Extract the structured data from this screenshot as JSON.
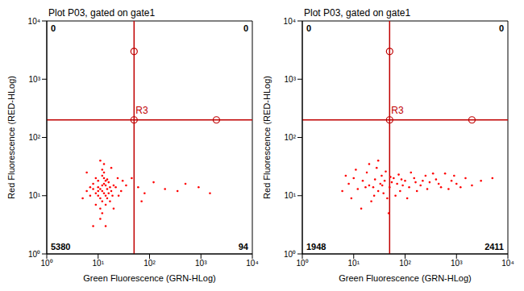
{
  "chart_data": [
    {
      "type": "scatter",
      "title": "Plot P03, gated on gate1",
      "x_label": "Green Fluorescence (GRN-HLog)",
      "y_label": "Red Fluorescence (RED-HLog)",
      "log": true,
      "color": "#ff0000",
      "xlim": [
        1,
        10000
      ],
      "ylim": [
        1,
        10000
      ],
      "xticks": [
        {
          "value": 1,
          "label": "10⁰"
        },
        {
          "value": 10,
          "label": "10¹"
        },
        {
          "value": 100,
          "label": "10²"
        },
        {
          "value": 1000,
          "label": "10³"
        },
        {
          "value": 10000,
          "label": "10⁴"
        }
      ],
      "yticks": [
        {
          "value": 1,
          "label": "10⁰"
        },
        {
          "value": 10,
          "label": "10¹"
        },
        {
          "value": 100,
          "label": "10²"
        },
        {
          "value": 1000,
          "label": "10³"
        },
        {
          "value": 10000,
          "label": "10⁴"
        }
      ],
      "gate": {
        "label": "R3",
        "x": 50,
        "y": 200,
        "handles": [
          [
            50,
            3000
          ],
          [
            50,
            200
          ],
          [
            2000,
            200
          ]
        ],
        "color": "#c00000"
      },
      "quadrant_counts": {
        "upper_left": 0,
        "upper_right": 0,
        "lower_left": 5380,
        "lower_right": 94
      },
      "x": [
        12,
        10,
        14,
        11,
        13,
        9,
        15,
        12,
        16,
        10,
        8,
        13,
        11,
        14,
        17,
        7,
        12,
        15,
        9,
        18,
        11,
        13,
        10,
        14,
        12,
        16,
        8,
        19,
        6,
        12,
        11,
        20,
        14,
        9,
        13,
        17,
        10,
        15,
        12,
        7,
        22,
        25,
        30,
        5,
        24,
        6,
        13,
        11,
        18,
        28,
        35,
        8,
        14,
        20,
        60,
        80,
        120,
        200,
        350,
        500,
        900,
        1500,
        45,
        70
      ],
      "values": [
        12,
        14,
        10,
        9,
        16,
        11,
        13,
        8,
        11,
        18,
        13,
        20,
        6,
        15,
        14,
        10,
        22,
        9,
        7,
        12,
        13,
        11,
        10,
        18,
        5,
        17,
        16,
        10,
        12,
        28,
        4,
        15,
        7,
        20,
        25,
        8,
        12,
        19,
        15,
        14,
        14,
        10,
        18,
        9,
        20,
        25,
        35,
        40,
        30,
        12,
        15,
        3,
        3,
        6,
        14,
        11,
        17,
        13,
        12,
        16,
        14,
        11,
        20,
        8
      ]
    },
    {
      "type": "scatter",
      "title": "Plot P03, gated on gate1",
      "x_label": "Green Fluorescence (GRN-HLog)",
      "y_label": "Red Fluorescence (RED-HLog)",
      "log": true,
      "color": "#ff0000",
      "xlim": [
        1,
        10000
      ],
      "ylim": [
        1,
        10000
      ],
      "xticks": [
        {
          "value": 1,
          "label": "10⁰"
        },
        {
          "value": 10,
          "label": "10¹"
        },
        {
          "value": 100,
          "label": "10²"
        },
        {
          "value": 1000,
          "label": "10³"
        },
        {
          "value": 10000,
          "label": "10⁴"
        }
      ],
      "yticks": [
        {
          "value": 1,
          "label": "10⁰"
        },
        {
          "value": 10,
          "label": "10¹"
        },
        {
          "value": 100,
          "label": "10²"
        },
        {
          "value": 1000,
          "label": "10³"
        },
        {
          "value": 10000,
          "label": "10⁴"
        }
      ],
      "gate": {
        "label": "R3",
        "x": 50,
        "y": 200,
        "handles": [
          [
            50,
            3000
          ],
          [
            50,
            200
          ],
          [
            2000,
            200
          ]
        ],
        "color": "#c00000"
      },
      "quadrant_counts": {
        "upper_left": 0,
        "upper_right": 0,
        "lower_left": 1948,
        "lower_right": 2411
      },
      "x": [
        20,
        30,
        40,
        50,
        60,
        25,
        35,
        45,
        70,
        80,
        100,
        120,
        150,
        200,
        250,
        300,
        400,
        500,
        600,
        800,
        1000,
        1500,
        2000,
        3000,
        15,
        12,
        10,
        8,
        18,
        22,
        28,
        33,
        38,
        42,
        55,
        65,
        75,
        90,
        110,
        130,
        170,
        220,
        270,
        350,
        450,
        700,
        900,
        1200,
        6,
        14,
        20,
        48,
        30,
        9,
        17,
        26,
        36,
        52,
        85,
        160,
        5000,
        7,
        11,
        24
      ],
      "values": [
        15,
        12,
        18,
        14,
        20,
        10,
        22,
        9,
        16,
        12,
        18,
        14,
        20,
        15,
        22,
        17,
        19,
        14,
        24,
        18,
        16,
        20,
        15,
        18,
        18,
        13,
        20,
        16,
        25,
        8,
        30,
        16,
        11,
        26,
        17,
        10,
        23,
        15,
        9,
        25,
        12,
        18,
        13,
        24,
        16,
        13,
        22,
        14,
        12,
        6,
        35,
        5,
        40,
        9,
        14,
        19,
        15,
        21,
        19,
        17,
        20,
        22,
        28,
        14
      ]
    }
  ]
}
